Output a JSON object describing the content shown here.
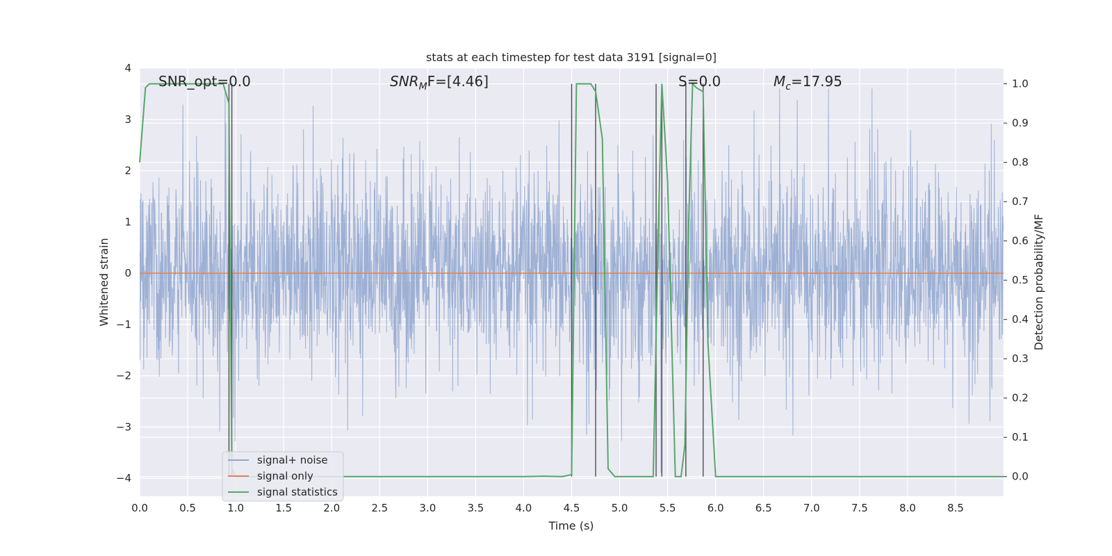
{
  "chart_data": {
    "type": "line",
    "title": "stats at each timestep for test data 3191 [signal=0]",
    "xlabel": "Time (s)",
    "ylabel_left": "Whitened strain",
    "ylabel_right": "Detection probability/MF",
    "xlim": [
      0.0,
      9.0
    ],
    "ylim_left": [
      -4.35,
      4.0
    ],
    "ylim_right": [
      -0.05,
      1.04
    ],
    "xticks": [
      "0.0",
      "0.5",
      "1.0",
      "1.5",
      "2.0",
      "2.5",
      "3.0",
      "3.5",
      "4.0",
      "4.5",
      "5.0",
      "5.5",
      "6.0",
      "6.5",
      "7.0",
      "7.5",
      "8.0",
      "8.5"
    ],
    "yticks_left": [
      "4",
      "3",
      "2",
      "1",
      "0",
      "−1",
      "−2",
      "−3",
      "−4"
    ],
    "yticks_right": [
      "1.0",
      "0.9",
      "0.8",
      "0.7",
      "0.6",
      "0.5",
      "0.4",
      "0.3",
      "0.2",
      "0.1",
      "0.0"
    ],
    "grid": true,
    "legend_position": "lower-left",
    "annotations": {
      "snr_opt": "SNR_opt=0.0",
      "snr_mf_prefix": "SNR",
      "snr_mf_sub": "M",
      "snr_mf_suffix": "F=[4.46]",
      "s_label": "S=0.0",
      "mc_prefix": "M",
      "mc_sub": "c",
      "mc_suffix": "=17.95"
    },
    "series": [
      {
        "name": "signal+ noise",
        "axis": "left",
        "color": "#8fa6cf",
        "note_style": "dense noise trace, roughly within -2.5..2.5 with spikes to about ±3.5",
        "envelope_upper": 2.5,
        "envelope_lower": -2.5
      },
      {
        "name": "signal only",
        "axis": "left",
        "color": "#dd8452",
        "x": [
          0.0,
          9.0
        ],
        "y": [
          0.0,
          0.0
        ]
      },
      {
        "name": "signal statistics",
        "axis": "right",
        "color": "#55a868",
        "x": [
          0.0,
          0.06,
          0.1,
          0.15,
          0.25,
          0.5,
          0.87,
          0.93,
          0.96,
          1.0,
          1.5,
          2.0,
          3.0,
          4.0,
          4.2,
          4.4,
          4.5,
          4.55,
          4.6,
          4.7,
          4.75,
          4.82,
          4.88,
          4.95,
          5.0,
          5.35,
          5.4,
          5.44,
          5.5,
          5.58,
          5.64,
          5.68,
          5.72,
          5.76,
          5.8,
          5.87,
          5.92,
          6.0,
          7.0,
          8.0,
          9.0
        ],
        "y": [
          0.8,
          0.99,
          1.0,
          1.0,
          1.0,
          1.0,
          1.0,
          0.95,
          0.02,
          0.0,
          0.0,
          0.0,
          0.0,
          0.0,
          0.001,
          0.0,
          0.005,
          1.0,
          1.0,
          1.0,
          0.98,
          0.86,
          0.02,
          0.0,
          0.0,
          0.0,
          0.6,
          1.0,
          0.75,
          0.0,
          0.0,
          0.08,
          0.65,
          1.0,
          0.99,
          0.98,
          0.34,
          0.0,
          0.0,
          0.0,
          0.0
        ]
      }
    ],
    "vertical_markers_x": [
      0.93,
      0.96,
      4.5,
      4.75,
      5.38,
      5.44,
      5.69,
      5.87
    ]
  },
  "legend": {
    "item1": "signal+ noise",
    "item2": "signal only",
    "item3": "signal statistics"
  },
  "colors": {
    "plot_bg": "#eaeaf2",
    "grid": "#ffffff",
    "noise": "#8fa6cf",
    "signal": "#dd8452",
    "stat": "#55a868",
    "marker": "#4d4d4d"
  }
}
